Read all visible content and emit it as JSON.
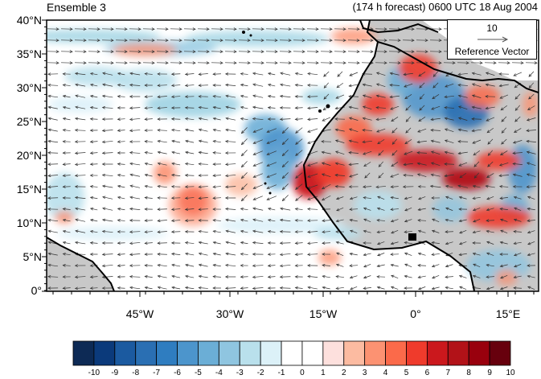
{
  "title_left": "Ensemble 3",
  "title_right": "(174 h forecast) 0600 UTC 18 Aug 2004",
  "lat_labels": [
    "40°N",
    "35°N",
    "30°N",
    "25°N",
    "20°N",
    "15°N",
    "10°N",
    "5°N",
    "0°"
  ],
  "lon_labels": [
    "45°W",
    "30°W",
    "15°W",
    "0°",
    "15°E"
  ],
  "map_extent": {
    "lon": [
      -60,
      19
    ],
    "lat": [
      0,
      40
    ]
  },
  "reference_vector": {
    "magnitude": "10",
    "label": "Reference Vector"
  },
  "colorbar": {
    "labels": [
      "-10",
      "-9",
      "-8",
      "-7",
      "-6",
      "-5",
      "-4",
      "-3",
      "-2",
      "-1",
      "0",
      "1",
      "2",
      "3",
      "4",
      "5",
      "6",
      "7",
      "8",
      "9",
      "10"
    ],
    "colors": [
      "#0d2a55",
      "#0b3a7b",
      "#1b5aa0",
      "#2a6fb3",
      "#2f7dc0",
      "#4c95cc",
      "#6baed6",
      "#8fc5e0",
      "#b9e0ec",
      "#dcf1f8",
      "#ffffff",
      "#ffffff",
      "#fde0dd",
      "#fcbba1",
      "#fc9272",
      "#fb6a4a",
      "#ef3b2c",
      "#cb181d",
      "#b21218",
      "#99000d",
      "#67000d"
    ]
  },
  "colors": {
    "land": "#c8c8c8",
    "coast": "#000000",
    "vector": "#333333"
  }
}
